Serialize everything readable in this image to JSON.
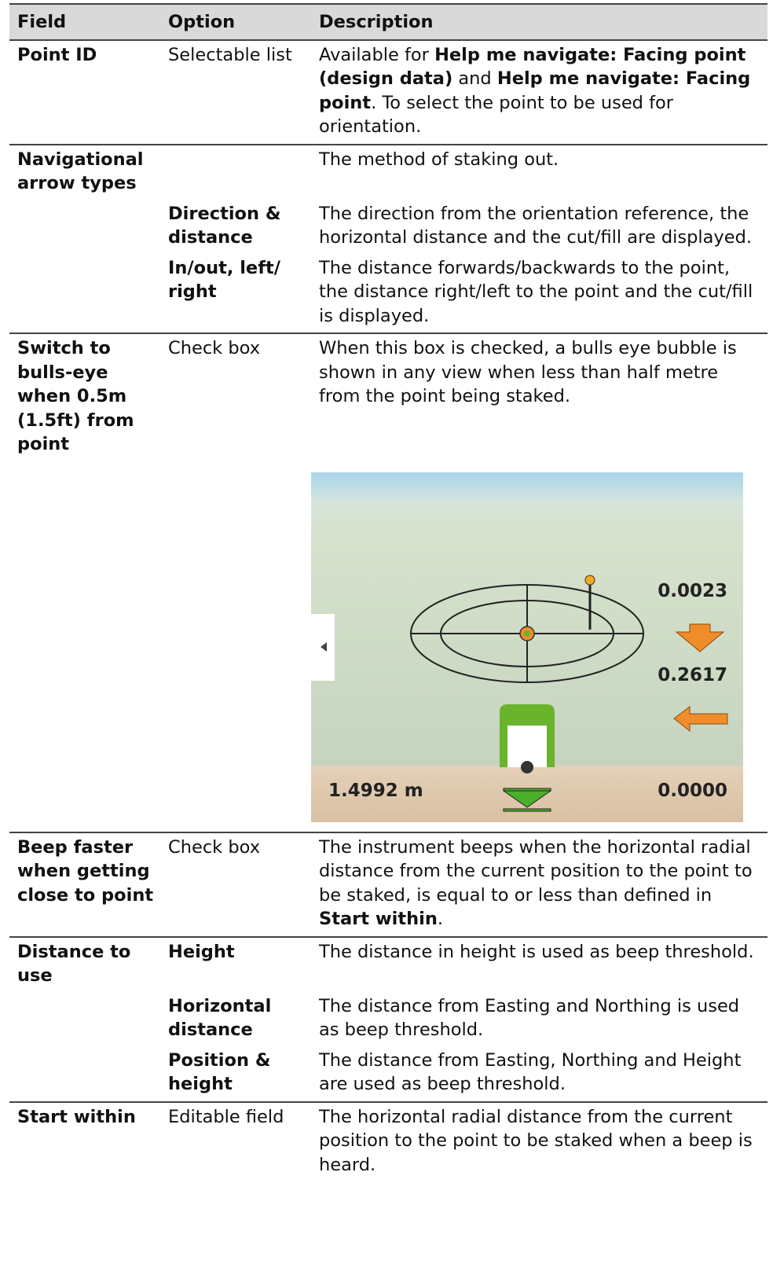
{
  "header": [
    "Field",
    "Option",
    "Description"
  ],
  "groups": [
    {
      "field": "Point ID",
      "items": [
        {
          "option": "Selectable list",
          "description": [
            {
              "text": "Available for "
            },
            {
              "text": "Help me navigate: Facing point (design data)",
              "bold": true
            },
            {
              "text": " and "
            },
            {
              "text": "Help me navigate: Facing point",
              "bold": true
            },
            {
              "text": ". To select the point to be used for orientation."
            }
          ]
        }
      ]
    },
    {
      "field": "Navigational arrow types",
      "items": [
        {
          "description": [
            {
              "text": "The method of staking out."
            }
          ]
        },
        {
          "option": "Direction & distance",
          "option_bold": true,
          "description": [
            {
              "text": "The direction from the orientation reference, the horizontal distance and the cut/fill are displayed."
            }
          ]
        },
        {
          "option": "In/out, left/ right",
          "option_bold": true,
          "description": [
            {
              "text": "The distance forwards/backwards to the point, the distance right/left to the point and the cut/fill is displayed."
            }
          ]
        }
      ]
    },
    {
      "field": "Switch to bulls-eye when 0.5m (1.5ft) from point",
      "items": [
        {
          "option": "Check box",
          "description": [
            {
              "text": "When this box is checked, a bulls eye bubble is shown in any view when less than half metre from the point being staked."
            }
          ]
        }
      ],
      "image": {
        "labels": [
          "0.0023",
          "0.2617",
          "1.4992 m",
          "0.0000"
        ]
      }
    },
    {
      "field": "Beep faster when getting close to point",
      "items": [
        {
          "option": "Check box",
          "description": [
            {
              "text": "The instrument beeps when the horizontal radial distance from the current position to the point to be staked, is equal to or less than defined in "
            },
            {
              "text": "Start within",
              "bold": true
            },
            {
              "text": "."
            }
          ]
        }
      ]
    },
    {
      "field": "Distance to use",
      "items": [
        {
          "option": "Height",
          "option_bold": true,
          "description": [
            {
              "text": "The distance in height is used as beep threshold."
            }
          ]
        },
        {
          "option": "Horizontal distance",
          "option_bold": true,
          "description": [
            {
              "text": "The distance from Easting and Northing is used as beep threshold."
            }
          ]
        },
        {
          "option": "Position & height",
          "option_bold": true,
          "description": [
            {
              "text": "The distance from Easting, Northing and Height are used as beep threshold."
            }
          ]
        }
      ]
    },
    {
      "field": "Start within",
      "items": [
        {
          "option": "Editable field",
          "description": [
            {
              "text": "The horizontal radial distance from the current position to the point to be staked when a beep is heard."
            }
          ]
        }
      ]
    }
  ]
}
